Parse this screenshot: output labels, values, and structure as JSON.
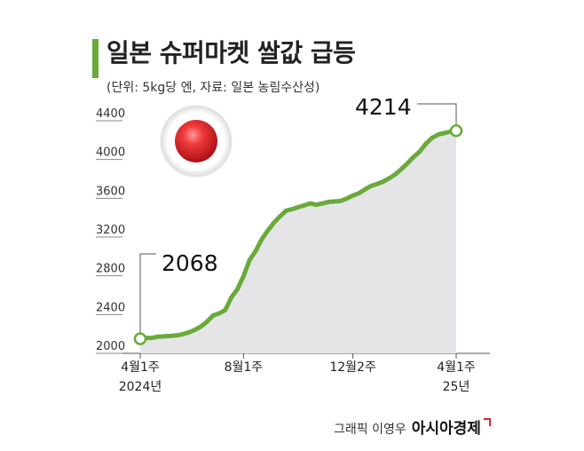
{
  "header": {
    "title": "일본 슈퍼마켓 쌀값 급등",
    "subtitle": "(단위: 5kg당 엔, 자료: 일본 농림수산성)"
  },
  "credit": {
    "designer": "그래픽 이영우",
    "brand": "아시아경제"
  },
  "colors": {
    "accent": "#6aaa3a",
    "area": "#e5e5e8",
    "flag_red": "#d9262c"
  },
  "chart_data": {
    "type": "area",
    "title": "일본 슈퍼마켓 쌀값 급등",
    "ylabel": "",
    "xlabel": "",
    "ylim": [
      2000,
      4400
    ],
    "yticks": [
      2000,
      2400,
      2800,
      3200,
      3600,
      4000,
      4400
    ],
    "grid": false,
    "x_ticks": [
      {
        "index": 0,
        "lines": [
          "4월1주",
          "2024년"
        ]
      },
      {
        "index": 17,
        "lines": [
          "8월1주",
          ""
        ]
      },
      {
        "index": 35,
        "lines": [
          "12월2주",
          ""
        ]
      },
      {
        "index": 52,
        "lines": [
          "4월1주",
          "25년"
        ]
      }
    ],
    "series": [
      {
        "values": [
          2068,
          2075,
          2078,
          2090,
          2093,
          2097,
          2103,
          2115,
          2135,
          2160,
          2195,
          2245,
          2310,
          2330,
          2365,
          2495,
          2580,
          2715,
          2880,
          2975,
          3095,
          3185,
          3265,
          3330,
          3390,
          3405,
          3425,
          3445,
          3465,
          3450,
          3465,
          3480,
          3485,
          3490,
          3515,
          3545,
          3570,
          3610,
          3645,
          3665,
          3690,
          3725,
          3765,
          3820,
          3880,
          3945,
          4000,
          4080,
          4140,
          4175,
          4190,
          4205,
          4214
        ]
      }
    ],
    "annotations": [
      {
        "index": 0,
        "label": "2068"
      },
      {
        "index": 52,
        "label": "4214"
      }
    ]
  }
}
